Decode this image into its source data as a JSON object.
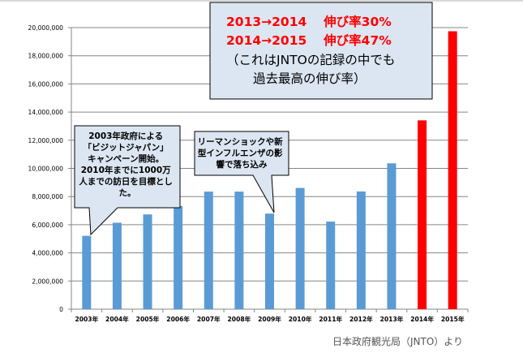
{
  "chart_data": {
    "type": "bar",
    "title": "",
    "xlabel": "",
    "ylabel": "",
    "ylim": [
      0,
      20000000
    ],
    "y_ticks": [
      0,
      2000000,
      4000000,
      6000000,
      8000000,
      10000000,
      12000000,
      14000000,
      16000000,
      18000000,
      20000000
    ],
    "y_tick_labels": [
      "0",
      "2,000,000",
      "4,000,000",
      "6,000,000",
      "8,000,000",
      "10,000,000",
      "12,000,000",
      "14,000,000",
      "16,000,000",
      "18,000,000",
      "20,000,000"
    ],
    "grid": true,
    "categories": [
      "2003年",
      "2004年",
      "2005年",
      "2006年",
      "2007年",
      "2008年",
      "2009年",
      "2010年",
      "2011年",
      "2012年",
      "2013年",
      "2014年",
      "2015年"
    ],
    "values": [
      5210000,
      6140000,
      6730000,
      7330000,
      8350000,
      8350000,
      6790000,
      8610000,
      6220000,
      8360000,
      10360000,
      13410000,
      19740000
    ],
    "bar_colors": [
      "#5b9bd5",
      "#5b9bd5",
      "#5b9bd5",
      "#5b9bd5",
      "#5b9bd5",
      "#5b9bd5",
      "#5b9bd5",
      "#5b9bd5",
      "#5b9bd5",
      "#5b9bd5",
      "#5b9bd5",
      "#ff0000",
      "#ff0000"
    ],
    "annotations": [
      {
        "target": "2003年",
        "lines": [
          "2003年政府による",
          "「ビジットジャパン」",
          "キャンペーン開始。",
          "2010年までに1000万",
          "人までの訪日を目標とし",
          "た。"
        ]
      },
      {
        "target": "2009年",
        "lines": [
          "リーマンショックや新",
          "型インフルエンザの影",
          "響で落ち込み"
        ]
      }
    ],
    "highlight_box": {
      "red_lines": [
        "2013→2014　 伸び率30%",
        "2014→2015　 伸び率47%"
      ],
      "black_lines": [
        "（これはJNTOの記録の中でも",
        "過去最高の伸び率）"
      ]
    }
  },
  "source_note": "日本政府観光局（JNTO）より",
  "colors": {
    "bar_blue": "#5b9bd5",
    "bar_red": "#ff0000",
    "callout_fill": "#dce6f2",
    "grid": "#868686"
  }
}
